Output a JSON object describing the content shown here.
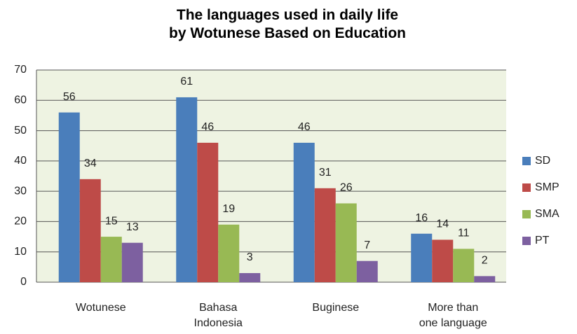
{
  "chart_data": {
    "type": "bar",
    "title": "The languages used in daily life by Wotunese Based on Education",
    "categories": [
      "Wotunese",
      "Bahasa Indonesia",
      "Buginese",
      "More than one language"
    ],
    "series": [
      {
        "name": "SD",
        "color": "#4a7ebb",
        "values": [
          56,
          61,
          46,
          16
        ]
      },
      {
        "name": "SMP",
        "color": "#be4b48",
        "values": [
          34,
          46,
          31,
          14
        ]
      },
      {
        "name": "SMA",
        "color": "#98b954",
        "values": [
          15,
          19,
          26,
          11
        ]
      },
      {
        "name": "PT",
        "color": "#7d60a0",
        "values": [
          13,
          3,
          7,
          2
        ]
      }
    ],
    "ylim": [
      0,
      70
    ],
    "yticks": [
      0,
      10,
      20,
      30,
      40,
      50,
      60,
      70
    ],
    "grid": true,
    "legend": "right"
  }
}
